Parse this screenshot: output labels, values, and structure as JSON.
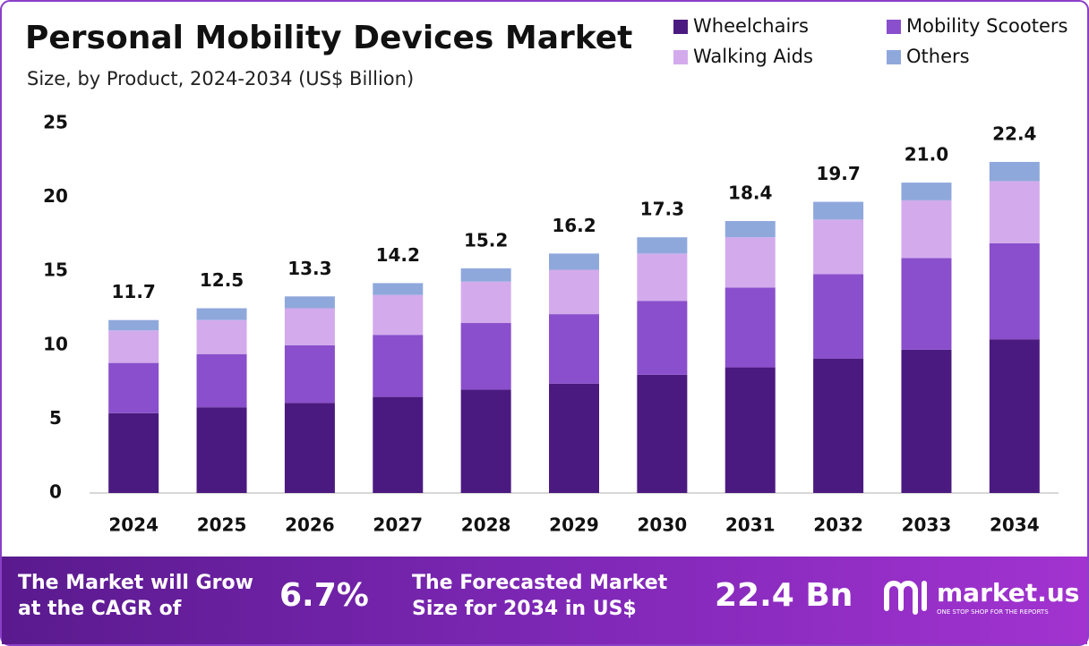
{
  "chart_data": {
    "type": "stacked_bar",
    "title": "Personal Mobility Devices Market",
    "subtitle": "Size, by Product, 2024-2034 (US$ Billion)",
    "categories": [
      "2024",
      "2025",
      "2026",
      "2027",
      "2028",
      "2029",
      "2030",
      "2031",
      "2032",
      "2033",
      "2034"
    ],
    "series": [
      {
        "name": "Wheelchairs",
        "color": "#4b1a80",
        "values": [
          5.4,
          5.8,
          6.1,
          6.5,
          7.0,
          7.4,
          8.0,
          8.5,
          9.1,
          9.7,
          10.4
        ]
      },
      {
        "name": "Mobility Scooters",
        "color": "#8a4fcc",
        "values": [
          3.4,
          3.6,
          3.9,
          4.2,
          4.5,
          4.7,
          5.0,
          5.4,
          5.7,
          6.2,
          6.5
        ]
      },
      {
        "name": "Walking Aids",
        "color": "#d3abed",
        "values": [
          2.2,
          2.3,
          2.5,
          2.7,
          2.8,
          3.0,
          3.2,
          3.4,
          3.7,
          3.9,
          4.2
        ]
      },
      {
        "name": "Others",
        "color": "#8fa8dc",
        "values": [
          0.7,
          0.8,
          0.8,
          0.8,
          0.9,
          1.1,
          1.1,
          1.1,
          1.2,
          1.2,
          1.3
        ]
      }
    ],
    "totals": [
      11.7,
      12.5,
      13.3,
      14.2,
      15.2,
      16.2,
      17.3,
      18.4,
      19.7,
      {
        "value": 21.0,
        "label": "21.0"
      },
      22.4
    ],
    "ylim": [
      0,
      25
    ],
    "yticks": [
      0,
      5,
      10,
      15,
      20,
      25
    ],
    "grid": false
  },
  "footer": {
    "cagr_text_1": "The Market will Grow",
    "cagr_text_2": "at the CAGR of",
    "cagr_value": "6.7%",
    "forecast_text_1": "The Forecasted Market",
    "forecast_text_2": "Size for 2034 in US$",
    "forecast_value": "22.4 Bn",
    "brand": "market.us",
    "tagline": "ONE STOP SHOP FOR THE REPORTS"
  }
}
